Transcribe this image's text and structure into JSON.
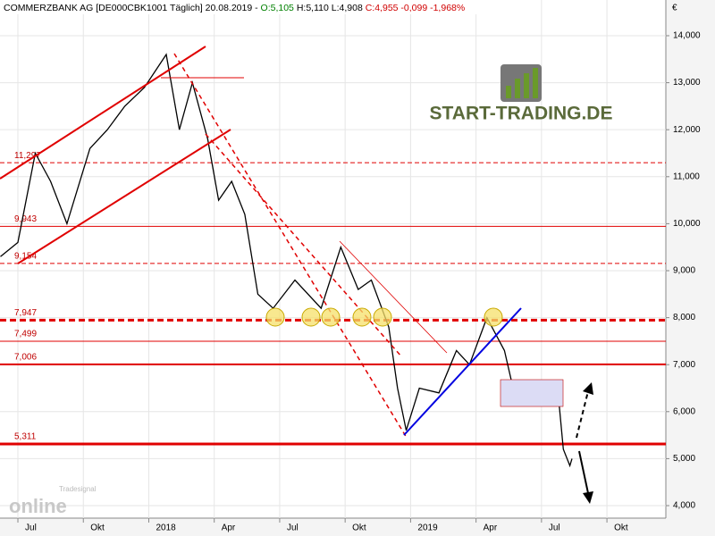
{
  "chart_data": {
    "type": "line",
    "header": {
      "name": "COMMERZBANK AG [DE000CBK1001  Täglich] 20.08.2019 -",
      "open": "O:5,105",
      "high": "H:5,110",
      "low": "L:4,908",
      "close": "C:4,955 -0,099 -1,968%"
    },
    "currency": "€",
    "logo": "START-TRADING.DE",
    "watermark": {
      "brand": "online",
      "sub": "Tradesignal"
    },
    "series": [
      {
        "name": "COMMERZBANK AG",
        "color": "#000000",
        "x": [
          -0.8,
          0,
          0.8,
          1.5,
          2.25,
          3.3,
          4.1,
          4.9,
          5.8,
          6.8,
          7.4,
          8,
          8.7,
          9.2,
          9.8,
          10.4,
          11,
          11.7,
          12.7,
          13.9,
          14.8,
          15.6,
          16.2,
          17,
          17.4,
          17.8,
          18.4,
          19.3,
          20.1,
          20.7,
          21.5,
          22.3,
          22.7,
          23.4,
          24.2,
          24.8,
          25,
          25.3,
          25.4
        ],
        "values": [
          9300,
          9600,
          11500,
          10900,
          10000,
          11600,
          12000,
          12500,
          12900,
          13600,
          12000,
          13000,
          11800,
          10500,
          10900,
          10200,
          8500,
          8200,
          8800,
          8200,
          9500,
          8600,
          8800,
          7800,
          6500,
          5600,
          6500,
          6400,
          7300,
          7000,
          8000,
          7300,
          6500,
          6200,
          6600,
          6200,
          5200,
          4850,
          5000
        ]
      }
    ],
    "levels": [
      {
        "value": 11297,
        "label": "11,297",
        "style": "dashed"
      },
      {
        "value": 9943,
        "label": "9,943",
        "style": "thin"
      },
      {
        "value": 9154,
        "label": "9,154",
        "style": "dashed"
      },
      {
        "value": 7947,
        "label": "7,947",
        "style": "thick-dashed"
      },
      {
        "value": 7499,
        "label": "7,499",
        "style": "thin"
      },
      {
        "value": 7006,
        "label": "7,006",
        "style": "medium"
      },
      {
        "value": 5311,
        "label": "5,311",
        "style": "thick"
      }
    ],
    "xlim": [
      -0.82,
      29.7
    ],
    "xticks": [
      {
        "value": 0,
        "label": "Jul"
      },
      {
        "value": 3,
        "label": "Okt"
      },
      {
        "value": 6,
        "label": "2018"
      },
      {
        "value": 9,
        "label": "Apr"
      },
      {
        "value": 12,
        "label": "Jul"
      },
      {
        "value": 15,
        "label": "Okt"
      },
      {
        "value": 18,
        "label": "2019"
      },
      {
        "value": 21,
        "label": "Apr"
      },
      {
        "value": 24,
        "label": "Jul"
      },
      {
        "value": 27,
        "label": "Okt"
      }
    ],
    "ylim": [
      3734,
      14760
    ],
    "yticks": [
      {
        "value": 4000,
        "label": "4,000"
      },
      {
        "value": 5000,
        "label": "5,000"
      },
      {
        "value": 6000,
        "label": "6,000"
      },
      {
        "value": 7000,
        "label": "7,000"
      },
      {
        "value": 8000,
        "label": "8,000"
      },
      {
        "value": 9000,
        "label": "9,000"
      },
      {
        "value": 10000,
        "label": "10,000"
      },
      {
        "value": 11000,
        "label": "11,000"
      },
      {
        "value": 12000,
        "label": "12,000"
      },
      {
        "value": 13000,
        "label": "13,000"
      },
      {
        "value": 14000,
        "label": "14,000"
      }
    ]
  }
}
